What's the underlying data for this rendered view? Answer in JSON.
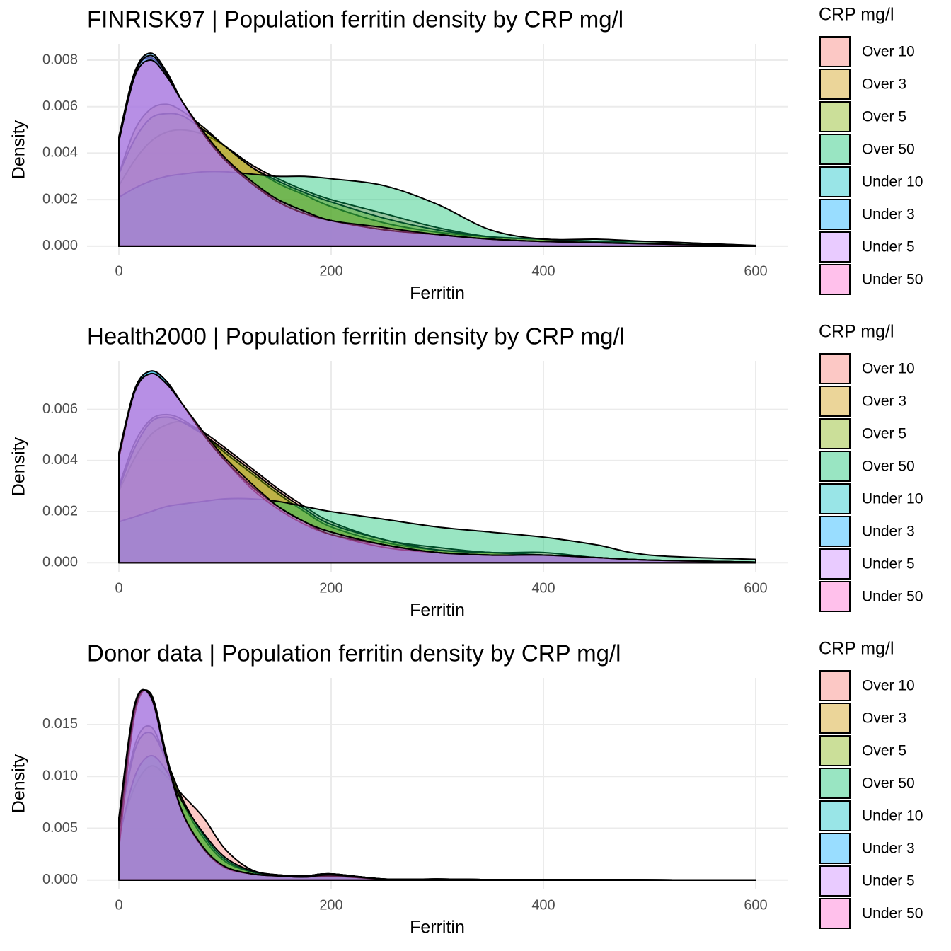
{
  "chart_data": [
    {
      "type": "density",
      "title": "FINRISK97 | Population ferritin density by CRP mg/l",
      "x_label": "Ferritin",
      "y_label": "Density",
      "legend_title": "CRP mg/l",
      "legend": "right",
      "grid": true,
      "x": [
        0,
        15,
        30,
        45,
        60,
        80,
        100,
        125,
        150,
        175,
        200,
        250,
        300,
        350,
        400,
        450,
        500,
        600
      ],
      "xlim": [
        -30,
        630
      ],
      "xticks": [
        0,
        200,
        400,
        600
      ],
      "ylim": [
        -0.0004,
        0.0087
      ],
      "yticks": [
        {
          "value": 0,
          "label": "0.000"
        },
        0.002,
        0.004,
        0.006,
        0.008
      ],
      "series": [
        {
          "name": "Over 10",
          "color": "#F8766D",
          "values": [
            0.0026,
            0.0037,
            0.0045,
            0.0049,
            0.005,
            0.0048,
            0.0043,
            0.0035,
            0.0029,
            0.0024,
            0.002,
            0.0014,
            0.0008,
            0.0004,
            0.0003,
            0.0002,
            0.0002,
            2e-05
          ]
        },
        {
          "name": "Over 3",
          "color": "#CD9600",
          "values": [
            0.0031,
            0.005,
            0.0059,
            0.0061,
            0.0058,
            0.0051,
            0.0043,
            0.0034,
            0.0027,
            0.0022,
            0.0017,
            0.001,
            0.0006,
            0.0004,
            0.0003,
            0.0002,
            0.0001,
            2e-05
          ]
        },
        {
          "name": "Over 5",
          "color": "#7CAE00",
          "values": [
            0.0031,
            0.0046,
            0.0055,
            0.0057,
            0.0056,
            0.005,
            0.0043,
            0.0034,
            0.0028,
            0.0023,
            0.0019,
            0.0012,
            0.0007,
            0.0004,
            0.0003,
            0.0002,
            0.0001,
            2e-05
          ]
        },
        {
          "name": "Over 50",
          "color": "#00BE67",
          "values": [
            0.0021,
            0.0025,
            0.0028,
            0.003,
            0.0031,
            0.0032,
            0.0032,
            0.0031,
            0.003,
            0.003,
            0.0029,
            0.0026,
            0.0018,
            0.0007,
            0.0003,
            0.0003,
            0.0002,
            3e-05
          ]
        },
        {
          "name": "Under 10",
          "color": "#00BFC4",
          "values": [
            0.0047,
            0.0075,
            0.0081,
            0.0074,
            0.0062,
            0.0049,
            0.0038,
            0.0027,
            0.002,
            0.0015,
            0.0011,
            0.0007,
            0.0005,
            0.0003,
            0.0002,
            0.00015,
            0.0001,
            2e-05
          ]
        },
        {
          "name": "Under 3",
          "color": "#00A9FF",
          "values": [
            0.0046,
            0.0075,
            0.0083,
            0.0075,
            0.0062,
            0.0048,
            0.0037,
            0.0027,
            0.0019,
            0.0014,
            0.0011,
            0.0007,
            0.0005,
            0.0003,
            0.0002,
            0.00015,
            0.0001,
            2e-05
          ]
        },
        {
          "name": "Under 5",
          "color": "#C77CFF",
          "values": [
            0.0045,
            0.0074,
            0.0082,
            0.0074,
            0.0062,
            0.0048,
            0.0037,
            0.0027,
            0.0019,
            0.0014,
            0.0011,
            0.0007,
            0.0005,
            0.0003,
            0.0002,
            0.00015,
            0.0001,
            2e-05
          ]
        },
        {
          "name": "Under 50",
          "color": "#FF61CC",
          "values": [
            0.0045,
            0.0073,
            0.008,
            0.0073,
            0.0062,
            0.0049,
            0.0038,
            0.0028,
            0.002,
            0.0015,
            0.0011,
            0.0008,
            0.0005,
            0.0003,
            0.0002,
            0.00015,
            0.0001,
            2e-05
          ]
        }
      ]
    },
    {
      "type": "density",
      "title": "Health2000 | Population ferritin density by CRP mg/l",
      "x_label": "Ferritin",
      "y_label": "Density",
      "legend_title": "CRP mg/l",
      "legend": "right",
      "grid": true,
      "x": [
        0,
        15,
        30,
        45,
        60,
        80,
        100,
        125,
        150,
        175,
        200,
        250,
        300,
        350,
        400,
        450,
        500,
        600
      ],
      "xlim": [
        -30,
        630
      ],
      "xticks": [
        0,
        200,
        400,
        600
      ],
      "ylim": [
        -0.00038,
        0.0079
      ],
      "yticks": [
        {
          "value": 0,
          "label": "0.000"
        },
        0.002,
        0.004,
        0.006
      ],
      "series": [
        {
          "name": "Over 10",
          "color": "#F8766D",
          "values": [
            0.0028,
            0.0041,
            0.005,
            0.0054,
            0.0055,
            0.0051,
            0.0045,
            0.0037,
            0.0029,
            0.0022,
            0.0016,
            0.0009,
            0.0006,
            0.0004,
            0.0004,
            0.0002,
            0.0001,
            2e-05
          ]
        },
        {
          "name": "Over 3",
          "color": "#CD9600",
          "values": [
            0.003,
            0.0047,
            0.0056,
            0.0058,
            0.0056,
            0.005,
            0.0043,
            0.0035,
            0.0027,
            0.002,
            0.0014,
            0.0008,
            0.0005,
            0.0004,
            0.0003,
            0.0002,
            0.0001,
            2e-05
          ]
        },
        {
          "name": "Over 5",
          "color": "#7CAE00",
          "values": [
            0.0029,
            0.0045,
            0.0055,
            0.0057,
            0.0055,
            0.005,
            0.0044,
            0.0036,
            0.0028,
            0.0021,
            0.0015,
            0.0009,
            0.0005,
            0.0004,
            0.0003,
            0.0002,
            0.0001,
            2e-05
          ]
        },
        {
          "name": "Over 50",
          "color": "#00BE67",
          "values": [
            0.0016,
            0.0018,
            0.002,
            0.0022,
            0.0023,
            0.0024,
            0.0025,
            0.0025,
            0.0024,
            0.0022,
            0.002,
            0.0017,
            0.0014,
            0.0012,
            0.001,
            0.0007,
            0.0003,
            0.00013
          ]
        },
        {
          "name": "Under 10",
          "color": "#00BFC4",
          "values": [
            0.0043,
            0.0068,
            0.0075,
            0.0071,
            0.0062,
            0.005,
            0.004,
            0.003,
            0.0022,
            0.0016,
            0.0012,
            0.0007,
            0.0004,
            0.0003,
            0.0003,
            0.0002,
            0.0001,
            2e-05
          ]
        },
        {
          "name": "Under 3",
          "color": "#00A9FF",
          "values": [
            0.0042,
            0.0068,
            0.0075,
            0.0071,
            0.0062,
            0.005,
            0.004,
            0.0029,
            0.0021,
            0.0015,
            0.0011,
            0.0006,
            0.0004,
            0.0003,
            0.0003,
            0.0002,
            0.0001,
            2e-05
          ]
        },
        {
          "name": "Under 5",
          "color": "#C77CFF",
          "values": [
            0.0041,
            0.0067,
            0.0074,
            0.007,
            0.0062,
            0.005,
            0.004,
            0.003,
            0.0022,
            0.0016,
            0.0011,
            0.0007,
            0.0004,
            0.0003,
            0.0003,
            0.0002,
            0.0001,
            2e-05
          ]
        },
        {
          "name": "Under 50",
          "color": "#FF61CC",
          "values": [
            0.0042,
            0.0067,
            0.0074,
            0.007,
            0.0062,
            0.0051,
            0.0041,
            0.0031,
            0.0022,
            0.0016,
            0.0012,
            0.0007,
            0.0004,
            0.0003,
            0.0003,
            0.0002,
            0.0001,
            2e-05
          ]
        }
      ]
    },
    {
      "type": "density",
      "title": "Donor data | Population ferritin density by CRP mg/l",
      "x_label": "Ferritin",
      "y_label": "Density",
      "legend_title": "CRP mg/l",
      "legend": "right",
      "grid": true,
      "x": [
        0,
        15,
        30,
        45,
        60,
        80,
        100,
        125,
        150,
        175,
        200,
        250,
        300,
        350,
        400,
        450,
        500,
        600
      ],
      "xlim": [
        -30,
        630
      ],
      "xticks": [
        0,
        200,
        400,
        600
      ],
      "ylim": [
        -0.0009,
        0.0195
      ],
      "yticks": [
        {
          "value": 0,
          "label": "0.000"
        },
        0.005,
        {
          "value": 0.01,
          "label": "0.010"
        },
        0.015
      ],
      "series": [
        {
          "name": "Over 10",
          "color": "#F8766D",
          "values": [
            0.0045,
            0.009,
            0.011,
            0.01,
            0.0082,
            0.006,
            0.003,
            0.001,
            0.0005,
            0.0004,
            0.0006,
            0.0001,
            0.0001,
            5e-05,
            5e-05,
            5e-05,
            3e-05,
            0
          ]
        },
        {
          "name": "Over 3",
          "color": "#CD9600",
          "values": [
            0.005,
            0.013,
            0.0148,
            0.0115,
            0.0075,
            0.004,
            0.0018,
            0.0008,
            0.0005,
            0.0004,
            0.0006,
            0.0001,
            0.0001,
            5e-05,
            5e-05,
            5e-05,
            3e-05,
            0
          ]
        },
        {
          "name": "Over 5",
          "color": "#7CAE00",
          "values": [
            0.0048,
            0.0125,
            0.0142,
            0.0115,
            0.0078,
            0.0043,
            0.002,
            0.0008,
            0.0005,
            0.0004,
            0.0006,
            0.0001,
            0.0001,
            5e-05,
            5e-05,
            5e-05,
            3e-05,
            0
          ]
        },
        {
          "name": "Over 50",
          "color": "#00BE67",
          "values": [
            0.004,
            0.01,
            0.012,
            0.0105,
            0.0075,
            0.0045,
            0.0022,
            0.0009,
            0.0005,
            0.0004,
            0.0006,
            0.0001,
            0.0001,
            5e-05,
            5e-05,
            5e-05,
            3e-05,
            0
          ]
        },
        {
          "name": "Under 10",
          "color": "#00BFC4",
          "values": [
            0.006,
            0.017,
            0.0176,
            0.0115,
            0.0064,
            0.003,
            0.0013,
            0.0006,
            0.0004,
            0.0003,
            0.0005,
            0.0001,
            0.0001,
            5e-05,
            5e-05,
            5e-05,
            3e-05,
            0
          ]
        },
        {
          "name": "Under 3",
          "color": "#00A9FF",
          "values": [
            0.003,
            0.016,
            0.018,
            0.012,
            0.0065,
            0.003,
            0.0012,
            0.0006,
            0.0004,
            0.0003,
            0.0004,
            0.0001,
            0.0001,
            5e-05,
            5e-05,
            5e-05,
            3e-05,
            0
          ]
        },
        {
          "name": "Under 5",
          "color": "#C77CFF",
          "values": [
            0.0045,
            0.0165,
            0.0178,
            0.0118,
            0.0065,
            0.003,
            0.0013,
            0.0006,
            0.0004,
            0.0003,
            0.0004,
            0.0001,
            0.0001,
            5e-05,
            5e-05,
            5e-05,
            3e-05,
            0
          ]
        },
        {
          "name": "Under 50",
          "color": "#FF61CC",
          "values": [
            0.0055,
            0.0168,
            0.0177,
            0.0116,
            0.0065,
            0.0031,
            0.0013,
            0.0006,
            0.0004,
            0.0003,
            0.0005,
            0.0001,
            0.0001,
            5e-05,
            5e-05,
            5e-05,
            3e-05,
            0
          ]
        }
      ]
    }
  ]
}
